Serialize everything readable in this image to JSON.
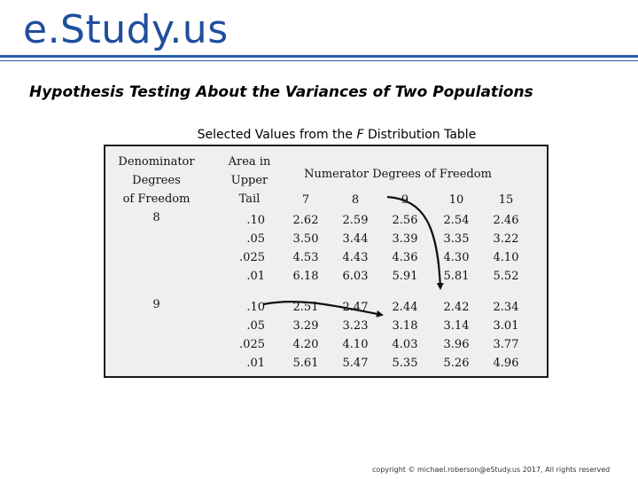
{
  "brand": "e.Study.us",
  "page_title": "Hypothesis Testing About the Variances of Two Populations",
  "table": {
    "title_pre": "Selected Values from the",
    "title_var": "F",
    "title_post": "Distribution Table",
    "header_denominator": [
      "Denominator",
      "Degrees",
      "of Freedom"
    ],
    "header_area": [
      "Area in",
      "Upper",
      "Tail"
    ],
    "header_numerator": "Numerator Degrees of Freedom",
    "numerator_df": [
      "7",
      "8",
      "9",
      "10",
      "15"
    ],
    "groups": [
      {
        "denominator_df": "8",
        "tails": [
          ".10",
          ".05",
          ".025",
          ".01"
        ],
        "columns": [
          [
            "2.62",
            "3.50",
            "4.53",
            "6.18"
          ],
          [
            "2.59",
            "3.44",
            "4.43",
            "6.03"
          ],
          [
            "2.56",
            "3.39",
            "4.36",
            "5.91"
          ],
          [
            "2.54",
            "3.35",
            "4.30",
            "5.81"
          ],
          [
            "2.46",
            "3.22",
            "4.10",
            "5.52"
          ]
        ]
      },
      {
        "denominator_df": "9",
        "tails": [
          ".10",
          ".05",
          ".025",
          ".01"
        ],
        "columns": [
          [
            "2.51",
            "3.29",
            "4.20",
            "5.61"
          ],
          [
            "2.47",
            "3.23",
            "4.10",
            "5.47"
          ],
          [
            "2.44",
            "3.18",
            "4.03",
            "5.35"
          ],
          [
            "2.42",
            "3.14",
            "3.96",
            "5.26"
          ],
          [
            "2.34",
            "3.01",
            "3.77",
            "4.96"
          ]
        ]
      }
    ]
  },
  "footer": "copyright © michael.roberson@eStudy.us 2017, All rights reserved",
  "colors": {
    "brand": "#1f4e9e",
    "rule": "#2a5aa8",
    "table_bg": "#efefef",
    "border": "#1a1a1a"
  }
}
